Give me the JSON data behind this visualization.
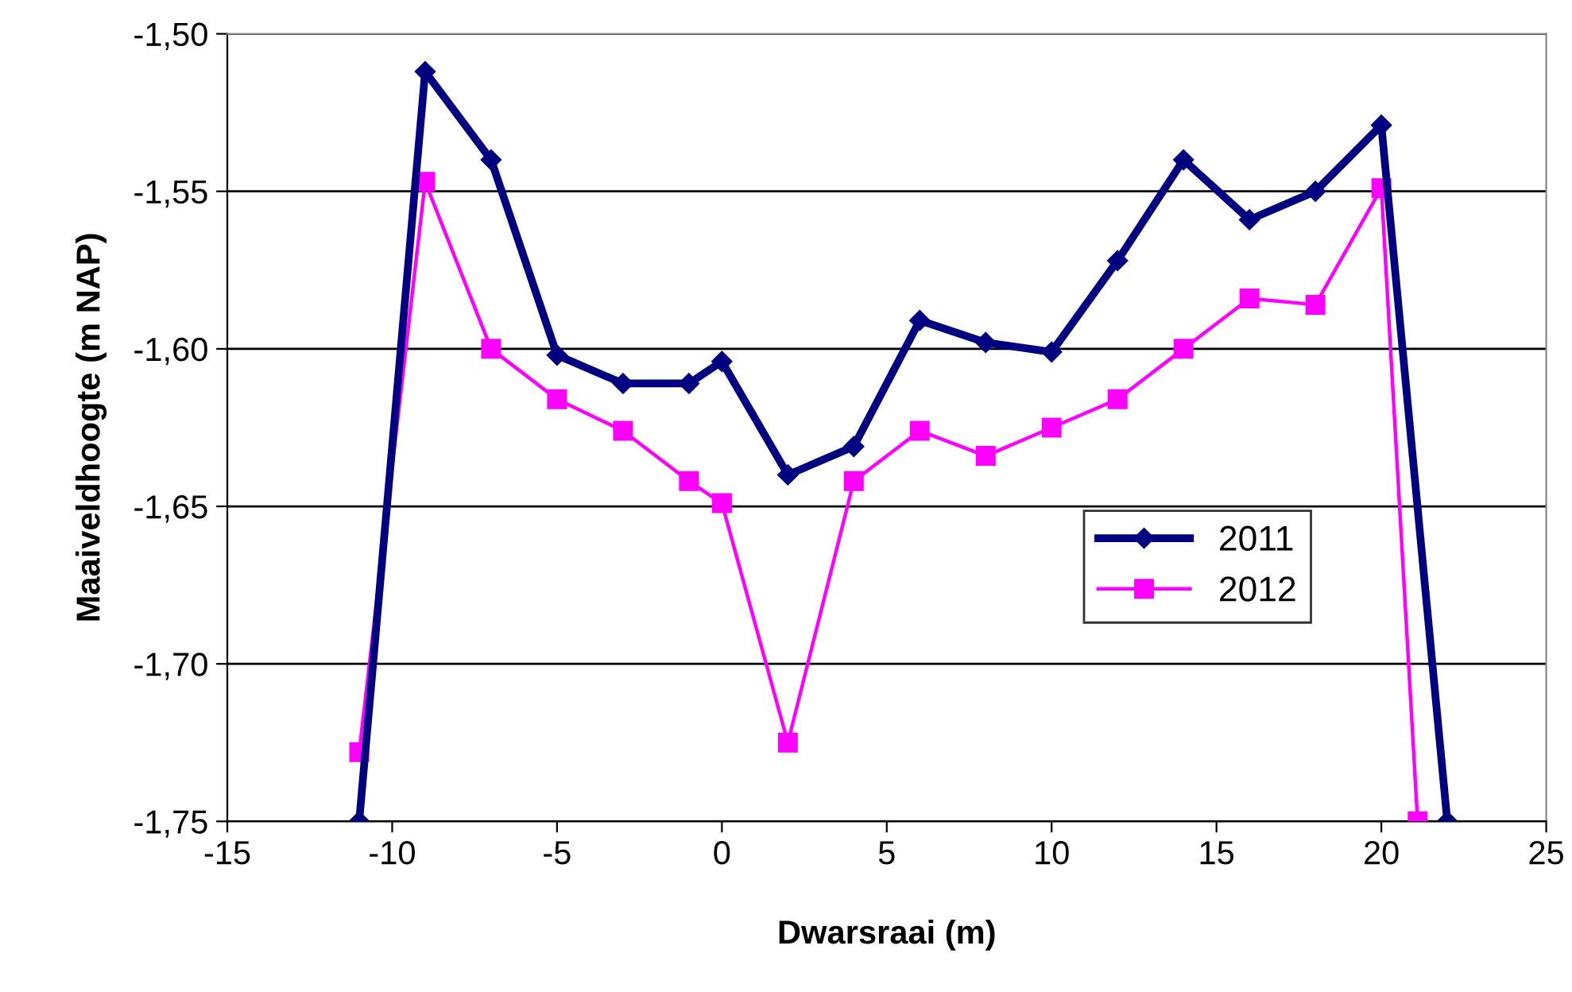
{
  "chart_data": {
    "type": "line",
    "xlabel": "Dwarsraai (m)",
    "ylabel": "Maaiveldhoogte (m NAP)",
    "series": [
      {
        "name": "2011",
        "color": "#000080",
        "marker": "diamond",
        "x": [
          -11,
          -9,
          -7,
          -5,
          -3,
          -1,
          0,
          2,
          4,
          6,
          8,
          10,
          12,
          14,
          16,
          18,
          20,
          22
        ],
        "values": [
          -1.75,
          -1.512,
          -1.54,
          -1.602,
          -1.611,
          -1.611,
          -1.604,
          -1.64,
          -1.631,
          -1.591,
          -1.598,
          -1.601,
          -1.572,
          -1.54,
          -1.559,
          -1.55,
          -1.529,
          -1.75
        ]
      },
      {
        "name": "2012",
        "color": "#ff00ff",
        "marker": "square",
        "x": [
          -11,
          -9,
          -7,
          -5,
          -3,
          -1,
          0,
          2,
          4,
          6,
          8,
          10,
          12,
          14,
          16,
          18,
          20,
          21.1
        ],
        "values": [
          -1.728,
          -1.547,
          -1.6,
          -1.616,
          -1.626,
          -1.642,
          -1.649,
          -1.725,
          -1.642,
          -1.626,
          -1.634,
          -1.625,
          -1.616,
          -1.6,
          -1.584,
          -1.586,
          -1.549,
          -1.75
        ]
      }
    ],
    "xlim": [
      -15,
      25
    ],
    "xticks": [
      -15,
      -10,
      -5,
      0,
      5,
      10,
      15,
      20,
      25
    ],
    "ylim": [
      -1.75,
      -1.5
    ],
    "yticks": [
      {
        "value": -1.75,
        "label": "-1,75"
      },
      {
        "value": -1.7,
        "label": "-1,70"
      },
      {
        "value": -1.65,
        "label": "-1,65"
      },
      {
        "value": -1.6,
        "label": "-1,60"
      },
      {
        "value": -1.55,
        "label": "-1,55"
      },
      {
        "value": -1.5,
        "label": "-1,50"
      }
    ],
    "grid": "y",
    "legend": "lower right",
    "line_style": "solid"
  }
}
